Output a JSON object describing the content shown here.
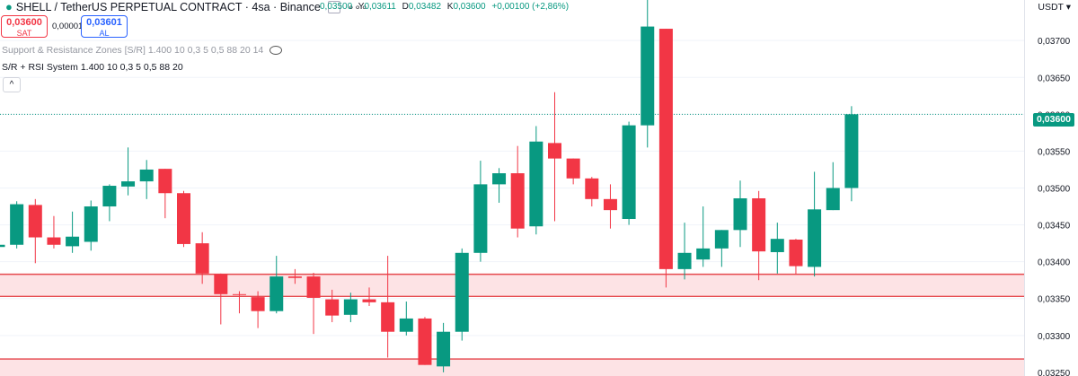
{
  "header": {
    "symbol_title": "SHELL / TetherUS PERPETUAL CONTRACT · 4sa · Binance",
    "ohlc": [
      {
        "k": "",
        "v": "0,03500"
      },
      {
        "k": "Y",
        "v": "0,03611"
      },
      {
        "k": "D",
        "v": "0,03482"
      },
      {
        "k": "K",
        "v": "0,03600"
      },
      {
        "k": "",
        "v": "+0,00100 (+2,86%)"
      }
    ]
  },
  "trade": {
    "sell_price": "0,03600",
    "sell_label": "SAT",
    "spread": "0,00001",
    "buy_price": "0,03601",
    "buy_label": "AL"
  },
  "indicators": {
    "line1": "Support & Resistance Zones [S/R] 1.400 10 0,3 5 0,5 88 20 14",
    "line2": "S/R + RSI System 1.400 10 0,3 5 0,5 88 20",
    "collapse_symbol": "^"
  },
  "currency": "USDT",
  "last_price_label": "0,03600",
  "colors": {
    "up": "#089981",
    "down": "#f23645",
    "zone_fill": "#fde3e5",
    "zone_border": "#e5484d",
    "last_price_line": "#089981",
    "grid": "#f0f3fa"
  },
  "chart_data": {
    "type": "candlestick",
    "y_axis_ticks": [
      "0,03700",
      "0,03650",
      "0,03600",
      "0,03550",
      "0,03500",
      "0,03450",
      "0,03400",
      "0,03350",
      "0,03300",
      "0,03250"
    ],
    "ylim": [
      0.03245,
      0.03755
    ],
    "last_price": 0.036,
    "zones": [
      [
        0.03353,
        0.03383
      ],
      [
        0.03242,
        0.03268
      ]
    ],
    "candles": [
      {
        "o": 0.0342,
        "h": 0.03428,
        "l": 0.03415,
        "c": 0.03423
      },
      {
        "o": 0.03423,
        "h": 0.03482,
        "l": 0.03418,
        "c": 0.03478
      },
      {
        "o": 0.03477,
        "h": 0.03485,
        "l": 0.03398,
        "c": 0.03433
      },
      {
        "o": 0.03433,
        "h": 0.03462,
        "l": 0.03418,
        "c": 0.03423
      },
      {
        "o": 0.03421,
        "h": 0.03468,
        "l": 0.03412,
        "c": 0.03434
      },
      {
        "o": 0.03427,
        "h": 0.03483,
        "l": 0.03415,
        "c": 0.03475
      },
      {
        "o": 0.03475,
        "h": 0.03505,
        "l": 0.03455,
        "c": 0.03503
      },
      {
        "o": 0.03502,
        "h": 0.03555,
        "l": 0.0349,
        "c": 0.03509
      },
      {
        "o": 0.03509,
        "h": 0.03538,
        "l": 0.03485,
        "c": 0.03525
      },
      {
        "o": 0.03526,
        "h": 0.03526,
        "l": 0.03459,
        "c": 0.03493
      },
      {
        "o": 0.03493,
        "h": 0.03496,
        "l": 0.0342,
        "c": 0.03424
      },
      {
        "o": 0.03425,
        "h": 0.0344,
        "l": 0.0337,
        "c": 0.03384
      },
      {
        "o": 0.03383,
        "h": 0.03384,
        "l": 0.03315,
        "c": 0.03356
      },
      {
        "o": 0.03356,
        "h": 0.0336,
        "l": 0.0333,
        "c": 0.03355
      },
      {
        "o": 0.03352,
        "h": 0.0336,
        "l": 0.0331,
        "c": 0.03333
      },
      {
        "o": 0.03333,
        "h": 0.03408,
        "l": 0.0333,
        "c": 0.0338
      },
      {
        "o": 0.0338,
        "h": 0.0339,
        "l": 0.0337,
        "c": 0.03378
      },
      {
        "o": 0.0338,
        "h": 0.03385,
        "l": 0.03302,
        "c": 0.03351
      },
      {
        "o": 0.03349,
        "h": 0.03362,
        "l": 0.03318,
        "c": 0.03327
      },
      {
        "o": 0.03328,
        "h": 0.03358,
        "l": 0.03318,
        "c": 0.03349
      },
      {
        "o": 0.03349,
        "h": 0.03365,
        "l": 0.0334,
        "c": 0.03345
      },
      {
        "o": 0.03345,
        "h": 0.03408,
        "l": 0.0327,
        "c": 0.03305
      },
      {
        "o": 0.03305,
        "h": 0.03346,
        "l": 0.033,
        "c": 0.03323
      },
      {
        "o": 0.03323,
        "h": 0.03325,
        "l": 0.0326,
        "c": 0.0326
      },
      {
        "o": 0.03258,
        "h": 0.03317,
        "l": 0.0325,
        "c": 0.03305
      },
      {
        "o": 0.03305,
        "h": 0.03418,
        "l": 0.03293,
        "c": 0.03412
      },
      {
        "o": 0.03412,
        "h": 0.03537,
        "l": 0.034,
        "c": 0.03505
      },
      {
        "o": 0.03505,
        "h": 0.03527,
        "l": 0.0348,
        "c": 0.0352
      },
      {
        "o": 0.0352,
        "h": 0.03557,
        "l": 0.03433,
        "c": 0.03445
      },
      {
        "o": 0.03448,
        "h": 0.03584,
        "l": 0.03437,
        "c": 0.03563
      },
      {
        "o": 0.03561,
        "h": 0.0363,
        "l": 0.03455,
        "c": 0.0354
      },
      {
        "o": 0.0354,
        "h": 0.0354,
        "l": 0.03505,
        "c": 0.03513
      },
      {
        "o": 0.03513,
        "h": 0.03515,
        "l": 0.03475,
        "c": 0.03485
      },
      {
        "o": 0.03485,
        "h": 0.03505,
        "l": 0.03445,
        "c": 0.0347
      },
      {
        "o": 0.03458,
        "h": 0.0359,
        "l": 0.0345,
        "c": 0.03585
      },
      {
        "o": 0.03585,
        "h": 0.0376,
        "l": 0.03555,
        "c": 0.03719
      },
      {
        "o": 0.03716,
        "h": 0.03716,
        "l": 0.03365,
        "c": 0.0339
      },
      {
        "o": 0.0339,
        "h": 0.03453,
        "l": 0.03376,
        "c": 0.03412
      },
      {
        "o": 0.03403,
        "h": 0.03475,
        "l": 0.03393,
        "c": 0.03418
      },
      {
        "o": 0.03418,
        "h": 0.03443,
        "l": 0.03393,
        "c": 0.03443
      },
      {
        "o": 0.03443,
        "h": 0.0351,
        "l": 0.0342,
        "c": 0.03486
      },
      {
        "o": 0.03486,
        "h": 0.03496,
        "l": 0.03375,
        "c": 0.03414
      },
      {
        "o": 0.03413,
        "h": 0.03453,
        "l": 0.03384,
        "c": 0.03431
      },
      {
        "o": 0.0343,
        "h": 0.03431,
        "l": 0.03383,
        "c": 0.03394
      },
      {
        "o": 0.03393,
        "h": 0.03522,
        "l": 0.0338,
        "c": 0.03471
      },
      {
        "o": 0.0347,
        "h": 0.03535,
        "l": 0.0347,
        "c": 0.035
      },
      {
        "o": 0.035,
        "h": 0.03611,
        "l": 0.03482,
        "c": 0.036
      }
    ]
  }
}
